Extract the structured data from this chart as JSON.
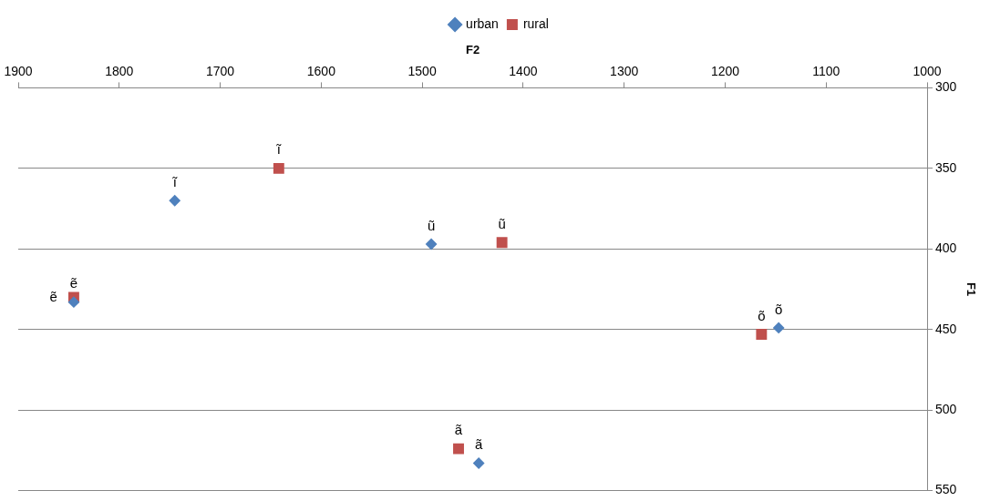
{
  "chart_data": {
    "type": "scatter",
    "xlabel": "F2",
    "ylabel": "F1",
    "xlim": [
      1900,
      1000
    ],
    "ylim": [
      550,
      300
    ],
    "xticks": [
      1900,
      1800,
      1700,
      1600,
      1500,
      1400,
      1300,
      1200,
      1100,
      1000
    ],
    "yticks": [
      300,
      350,
      400,
      450,
      500,
      550
    ],
    "grid": "y",
    "legend": "top",
    "series": [
      {
        "name": "urban",
        "color": "#4f81bd",
        "marker": "diamond",
        "x": [
          1745,
          1491,
          1845,
          1147,
          1444
        ],
        "values": [
          370,
          397,
          433,
          449,
          533
        ]
      },
      {
        "name": "rural",
        "color": "#c0504d",
        "marker": "square",
        "x": [
          1642,
          1421,
          1845,
          1164,
          1464
        ],
        "values": [
          350,
          396,
          430,
          453,
          524
        ]
      }
    ],
    "annotations": [
      {
        "text": "ĩ",
        "x": 1745,
        "y": 370
      },
      {
        "text": "ũ",
        "x": 1491,
        "y": 397
      },
      {
        "text": "ẽ",
        "x": 1845,
        "y": 433
      },
      {
        "text": "õ",
        "x": 1147,
        "y": 449
      },
      {
        "text": "ã",
        "x": 1444,
        "y": 533
      },
      {
        "text": "ĩ",
        "x": 1642,
        "y": 350
      },
      {
        "text": "ũ",
        "x": 1421,
        "y": 396
      },
      {
        "text": "ẽ",
        "x": 1845,
        "y": 430
      },
      {
        "text": "õ",
        "x": 1164,
        "y": 453
      },
      {
        "text": "ã",
        "x": 1464,
        "y": 524
      }
    ]
  }
}
